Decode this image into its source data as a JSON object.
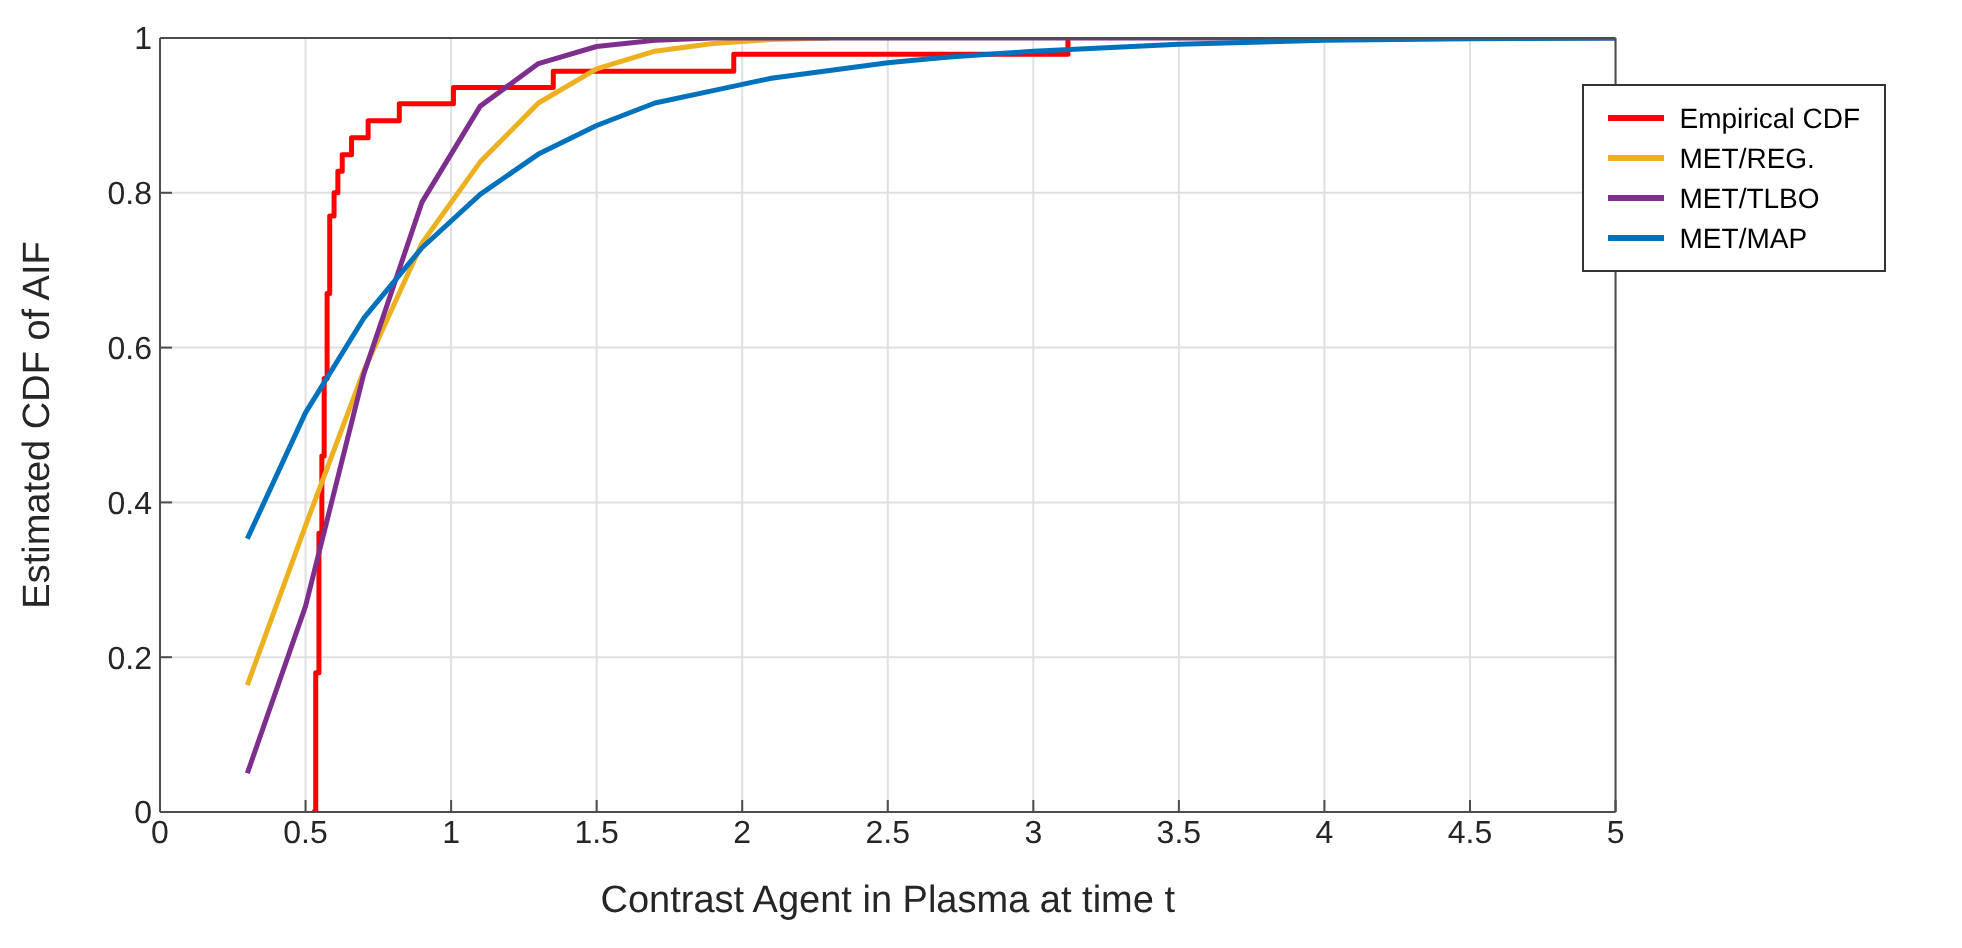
{
  "chart_data": {
    "type": "line",
    "xlabel": "Contrast Agent in Plasma at time t",
    "ylabel": "Estimated CDF of AIF",
    "xlim": [
      0,
      5
    ],
    "ylim": [
      0,
      1
    ],
    "xticks": [
      0,
      0.5,
      1,
      1.5,
      2,
      2.5,
      3,
      3.5,
      4,
      4.5,
      5
    ],
    "yticks": [
      0,
      0.2,
      0.4,
      0.6,
      0.8,
      1
    ],
    "grid": true,
    "legend": "top right",
    "series": [
      {
        "name": "Empirical CDF",
        "type": "step",
        "color": "#ff0000",
        "x": [
          0.523,
          0.535,
          0.546,
          0.556,
          0.564,
          0.574,
          0.583,
          0.598,
          0.611,
          0.626,
          0.658,
          0.715,
          0.822,
          1.008,
          1.351,
          1.971,
          3.119
        ],
        "values": [
          0,
          0.18,
          0.36,
          0.46,
          0.56,
          0.67,
          0.77,
          0.8,
          0.828,
          0.849,
          0.871,
          0.893,
          0.915,
          0.936,
          0.957,
          0.979,
          1
        ]
      },
      {
        "name": "MET/REG.",
        "color": "#edb120",
        "x": [
          0.3,
          0.5,
          0.7,
          0.9,
          1.1,
          1.3,
          1.5,
          1.7,
          1.9,
          2.1,
          2.3
        ],
        "values": [
          0.164,
          0.37,
          0.57,
          0.735,
          0.84,
          0.916,
          0.96,
          0.983,
          0.993,
          0.998,
          1
        ]
      },
      {
        "name": "MET/TLBO",
        "color": "#7e2f8e",
        "x": [
          0.3,
          0.5,
          0.7,
          0.9,
          1.1,
          1.3,
          1.5,
          1.7,
          1.9,
          3,
          4,
          5
        ],
        "values": [
          0.05,
          0.266,
          0.566,
          0.788,
          0.912,
          0.967,
          0.989,
          0.997,
          1,
          1,
          1,
          1
        ]
      },
      {
        "name": "MET/MAP",
        "color": "#0072bd",
        "x": [
          0.3,
          0.5,
          0.7,
          0.9,
          1.1,
          1.3,
          1.5,
          1.7,
          1.9,
          2.1,
          2.3,
          2.5,
          2.7,
          3,
          3.5,
          4,
          4.5,
          5
        ],
        "values": [
          0.353,
          0.516,
          0.638,
          0.729,
          0.798,
          0.85,
          0.887,
          0.916,
          0.932,
          0.948,
          0.958,
          0.968,
          0.975,
          0.983,
          0.992,
          0.997,
          0.999,
          1
        ]
      }
    ]
  }
}
